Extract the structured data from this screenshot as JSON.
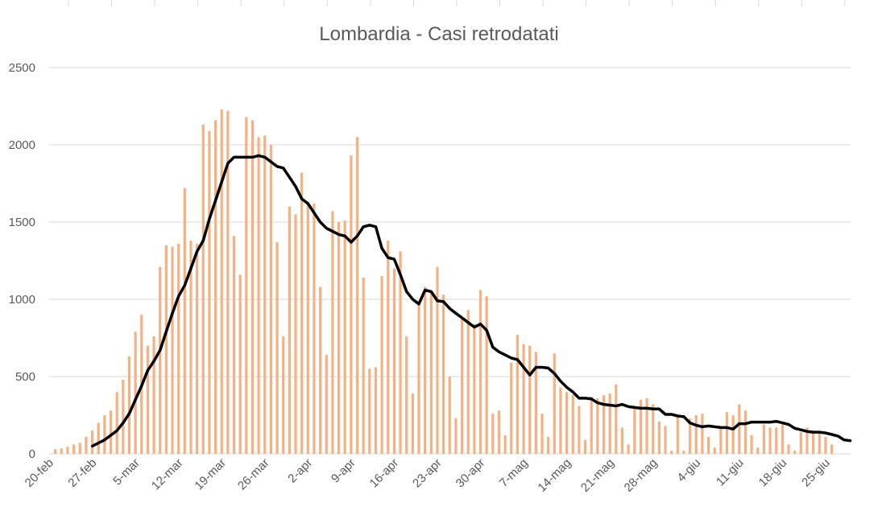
{
  "chart_data": {
    "type": "bar",
    "title": "Lombardia - Casi retrodatati",
    "xlabel": "",
    "ylabel": "",
    "ylim": [
      0,
      2500
    ],
    "yticks": [
      0,
      500,
      1000,
      1500,
      2000,
      2500
    ],
    "grid": true,
    "legend": "none",
    "colors": {
      "bars": "#f4b183",
      "line": "#000000",
      "grid": "#d9d9d9",
      "text": "#595959"
    },
    "xticks": [
      "20-feb",
      "27-feb",
      "5-mar",
      "12-mar",
      "19-mar",
      "26-mar",
      "2-apr",
      "9-apr",
      "16-apr",
      "23-apr",
      "30-apr",
      "7-mag",
      "14-mag",
      "21-mag",
      "28-mag",
      "4-giu",
      "11-giu",
      "18-giu",
      "25-giu"
    ],
    "series": [
      {
        "type": "bar",
        "values": [
          30,
          35,
          45,
          60,
          70,
          110,
          150,
          200,
          250,
          280,
          400,
          480,
          630,
          790,
          900,
          700,
          760,
          1210,
          1350,
          1340,
          1360,
          1720,
          1380,
          1360,
          2130,
          2090,
          2160,
          2230,
          2220,
          1410,
          1160,
          2180,
          2160,
          2050,
          2060,
          2000,
          1370,
          760,
          1600,
          1550,
          1820,
          1630,
          1620,
          1080,
          640,
          1570,
          1500,
          1510,
          1930,
          2050,
          1140,
          550,
          560,
          1150,
          1380,
          1200,
          1310,
          760,
          390,
          990,
          1080,
          1040,
          1210,
          1030,
          500,
          230,
          880,
          930,
          840,
          1060,
          1020,
          260,
          280,
          120,
          590,
          770,
          710,
          700,
          660,
          260,
          110,
          650,
          430,
          400,
          380,
          310,
          90,
          370,
          360,
          380,
          390,
          450,
          170,
          60,
          310,
          350,
          360,
          320,
          210,
          180,
          20,
          250,
          20,
          230,
          250,
          260,
          110,
          40,
          180,
          270,
          250,
          320,
          280,
          120,
          40,
          190,
          170,
          170,
          190,
          60,
          20,
          140,
          170,
          150,
          140,
          110,
          60
        ],
        "first_date": "21-feb"
      },
      {
        "type": "line",
        "values": [
          50,
          70,
          90,
          120,
          150,
          200,
          260,
          350,
          440,
          540,
          600,
          670,
          790,
          910,
          1020,
          1090,
          1200,
          1310,
          1380,
          1520,
          1640,
          1760,
          1880,
          1920,
          1920,
          1920,
          1920,
          1930,
          1920,
          1890,
          1860,
          1850,
          1790,
          1730,
          1650,
          1620,
          1560,
          1500,
          1460,
          1440,
          1420,
          1410,
          1370,
          1410,
          1470,
          1480,
          1470,
          1330,
          1270,
          1260,
          1160,
          1050,
          1000,
          970,
          1060,
          1050,
          990,
          985,
          940,
          910,
          880,
          850,
          820,
          840,
          800,
          690,
          660,
          640,
          620,
          610,
          560,
          510,
          560,
          560,
          555,
          520,
          470,
          430,
          400,
          360,
          360,
          355,
          330,
          320,
          315,
          310,
          320,
          305,
          300,
          295,
          295,
          290,
          290,
          255,
          255,
          245,
          240,
          200,
          185,
          175,
          180,
          175,
          170,
          170,
          160,
          195,
          195,
          205,
          205,
          205,
          205,
          210,
          200,
          190,
          165,
          155,
          145,
          140,
          140,
          135,
          125,
          115,
          90,
          85
        ],
        "first_date": "27-feb"
      }
    ]
  }
}
